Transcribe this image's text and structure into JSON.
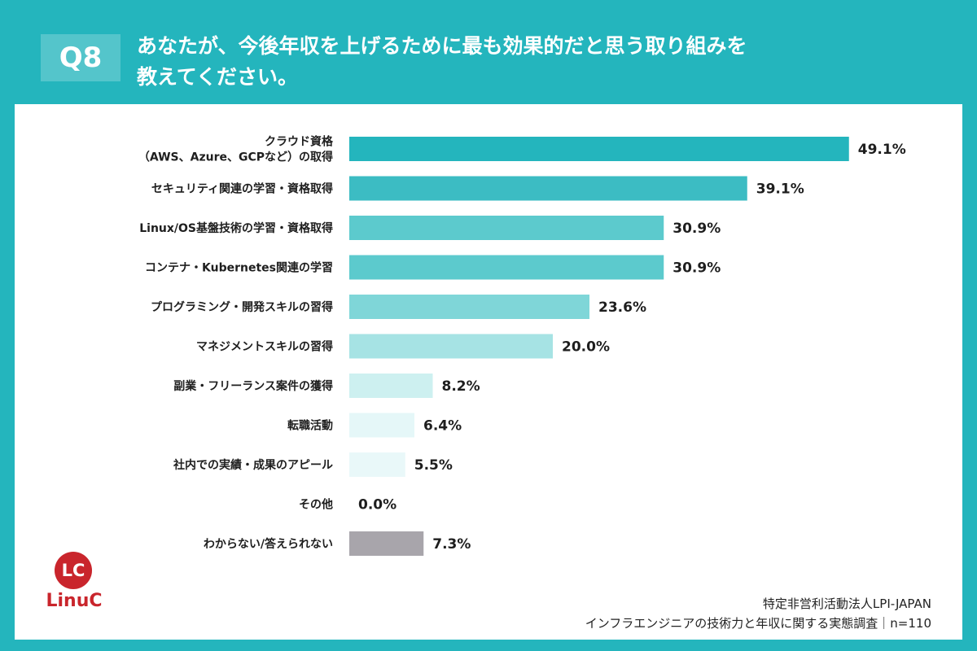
{
  "header": {
    "question_number": "Q8",
    "question_line1": "あなたが、今後年収を上げるために最も効果的だと思う取り組みを",
    "question_line2": "教えてください。"
  },
  "chart_data": {
    "type": "bar",
    "orientation": "horizontal",
    "unit": "%",
    "xlim": [
      0,
      50
    ],
    "categories": [
      [
        "クラウド資格",
        "（AWS、Azure、GCPなど）の取得"
      ],
      [
        "セキュリティ関連の学習・資格取得"
      ],
      [
        "Linux/OS基盤技術の学習・資格取得"
      ],
      [
        "コンテナ・Kubernetes関連の学習"
      ],
      [
        "プログラミング・開発スキルの習得"
      ],
      [
        "マネジメントスキルの習得"
      ],
      [
        "副業・フリーランス案件の獲得"
      ],
      [
        "転職活動"
      ],
      [
        "社内での実績・成果のアピール"
      ],
      [
        "その他"
      ],
      [
        "わからない/答えられない"
      ]
    ],
    "values": [
      49.1,
      39.1,
      30.9,
      30.9,
      23.6,
      20.0,
      8.2,
      6.4,
      5.5,
      0.0,
      7.3
    ],
    "value_labels": [
      "49.1%",
      "39.1%",
      "30.9%",
      "30.9%",
      "23.6%",
      "20.0%",
      "8.2%",
      "6.4%",
      "5.5%",
      "0.0%",
      "7.3%"
    ],
    "colors": [
      "#24b5bd",
      "#3cbcc3",
      "#5ccacd",
      "#5ccacd",
      "#7fd6d8",
      "#a6e3e4",
      "#cdf0f0",
      "#e5f7f8",
      "#e9f8f9",
      "#eef9fa",
      "#a8a5ab"
    ]
  },
  "logo": {
    "mark": "LC",
    "name": "LinuC"
  },
  "source": {
    "line1": "特定非営利活動法人LPI-JAPAN",
    "line2": "インフラエンジニアの技術力と年収に関する実態調査｜n=110"
  }
}
